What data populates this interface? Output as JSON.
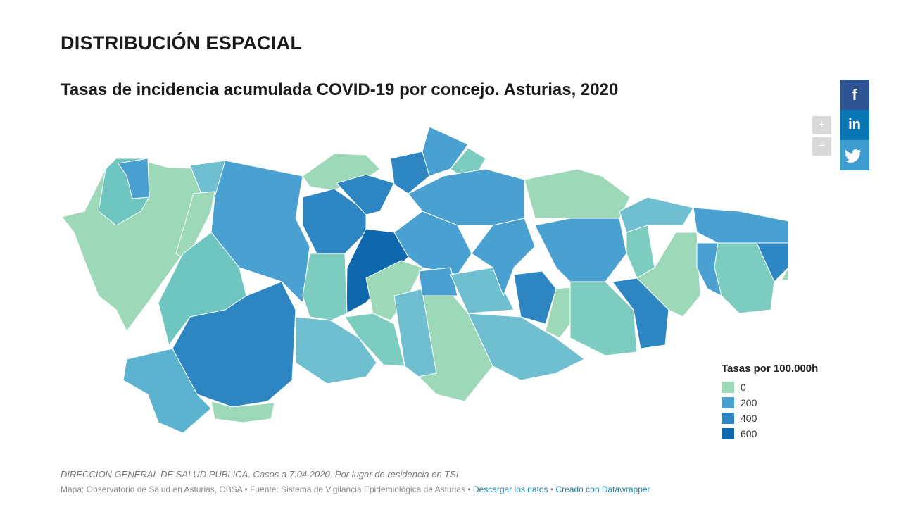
{
  "header": {
    "title": "DISTRIBUCIÓN ESPACIAL"
  },
  "map": {
    "title": "Tasas de incidencia acumulada COVID-19 por concejo. Asturias, 2020",
    "legend": {
      "title": "Tasas por 100.000h",
      "items": [
        {
          "label": "0",
          "color": "#9dd9b8"
        },
        {
          "label": "200",
          "color": "#4aa1d1"
        },
        {
          "label": "400",
          "color": "#2d86c1"
        },
        {
          "label": "600",
          "color": "#0f68ae"
        }
      ]
    },
    "controls": {
      "zoom_in": "+",
      "zoom_out": "−"
    }
  },
  "footer": {
    "note": "DIRECCION GENERAL DE SALUD PUBLICA. Casos a 7.04.2020. Por lugar de residencia en TSI",
    "source": "Mapa: Observatorio de Salud en Asturias, OBSA • Fuente: Sistema de Vigilancia Epidemiológica de Asturias",
    "separator": "•",
    "download_link": "Descargar los datos",
    "credit_link": "Creado con Datawrapper"
  },
  "social": {
    "facebook": "f",
    "linkedin": "in"
  }
}
